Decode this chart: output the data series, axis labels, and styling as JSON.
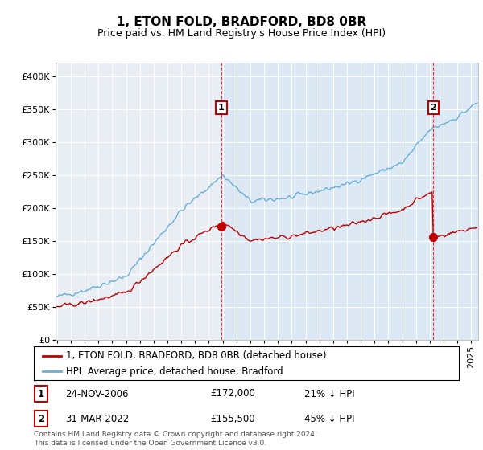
{
  "title": "1, ETON FOLD, BRADFORD, BD8 0BR",
  "subtitle": "Price paid vs. HM Land Registry's House Price Index (HPI)",
  "title_fontsize": 11,
  "subtitle_fontsize": 9,
  "background_color_left": "#e8e8e8",
  "background_color_right": "#dce9f5",
  "fig_bg_color": "#ffffff",
  "ylim": [
    0,
    420000
  ],
  "yticks": [
    0,
    50000,
    100000,
    150000,
    200000,
    250000,
    300000,
    350000,
    400000
  ],
  "hpi_color": "#6aaed6",
  "price_color": "#c00000",
  "transaction1_year": 2006.9,
  "transaction1_price": 172000,
  "transaction2_year": 2022.25,
  "transaction2_price": 155500,
  "legend_label_price": "1, ETON FOLD, BRADFORD, BD8 0BR (detached house)",
  "legend_label_hpi": "HPI: Average price, detached house, Bradford",
  "table_row1": [
    "1",
    "24-NOV-2006",
    "£172,000",
    "21% ↓ HPI"
  ],
  "table_row2": [
    "2",
    "31-MAR-2022",
    "£155,500",
    "45% ↓ HPI"
  ],
  "footnote": "Contains HM Land Registry data © Crown copyright and database right 2024.\nThis data is licensed under the Open Government Licence v3.0.",
  "xstart": 1995,
  "xend": 2025.5,
  "n_months": 366
}
